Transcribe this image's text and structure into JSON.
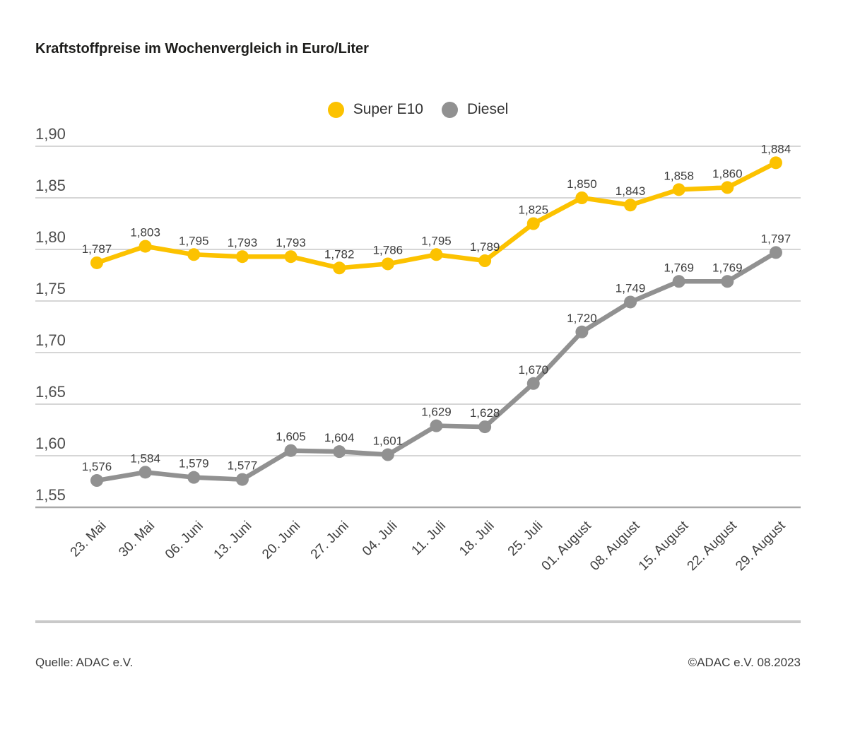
{
  "page": {
    "title": "Kraftstoffpreise im Wochenvergleich in Euro/Liter"
  },
  "legend": {
    "items": [
      {
        "label": "Super E10",
        "color": "#FCC200"
      },
      {
        "label": "Diesel",
        "color": "#919191"
      }
    ]
  },
  "footer": {
    "source": "Quelle: ADAC e.V.",
    "copyright": "©ADAC e.V. 08.2023"
  },
  "chart_data": {
    "type": "line",
    "title": "Kraftstoffpreise im Wochenvergleich in Euro/Liter",
    "xlabel": "",
    "ylabel": "Euro/Liter",
    "ylim": [
      1.55,
      1.9
    ],
    "grid": "on",
    "legend_position": "top-center",
    "categories": [
      "23. Mai",
      "30. Mai",
      "06. Juni",
      "13. Juni",
      "20. Juni",
      "27. Juni",
      "04. Juli",
      "11. Juli",
      "18. Juli",
      "25. Juli",
      "01. August",
      "08. August",
      "15. August",
      "22. August",
      "29. August"
    ],
    "yticks": [
      {
        "value": 1.9,
        "label": "1,90"
      },
      {
        "value": 1.85,
        "label": "1,85"
      },
      {
        "value": 1.8,
        "label": "1,80"
      },
      {
        "value": 1.75,
        "label": "1,75"
      },
      {
        "value": 1.7,
        "label": "1,70"
      },
      {
        "value": 1.65,
        "label": "1,65"
      },
      {
        "value": 1.6,
        "label": "1,60"
      },
      {
        "value": 1.55,
        "label": "1,55"
      }
    ],
    "series": [
      {
        "name": "Super E10",
        "color": "#FCC200",
        "values": [
          1.787,
          1.803,
          1.795,
          1.793,
          1.793,
          1.782,
          1.786,
          1.795,
          1.789,
          1.825,
          1.85,
          1.843,
          1.858,
          1.86,
          1.884
        ],
        "labels": [
          "1,787",
          "1,803",
          "1,795",
          "1,793",
          "1,793",
          "1,782",
          "1,786",
          "1,795",
          "1,789",
          "1,825",
          "1,850",
          "1,843",
          "1,858",
          "1,860",
          "1,884"
        ]
      },
      {
        "name": "Diesel",
        "color": "#919191",
        "values": [
          1.576,
          1.584,
          1.579,
          1.577,
          1.605,
          1.604,
          1.601,
          1.629,
          1.628,
          1.67,
          1.72,
          1.749,
          1.769,
          1.769,
          1.797
        ],
        "labels": [
          "1,576",
          "1,584",
          "1,579",
          "1,577",
          "1,605",
          "1,604",
          "1,601",
          "1,629",
          "1,628",
          "1,670",
          "1,720",
          "1,749",
          "1,769",
          "1,769",
          "1,797"
        ]
      }
    ]
  }
}
